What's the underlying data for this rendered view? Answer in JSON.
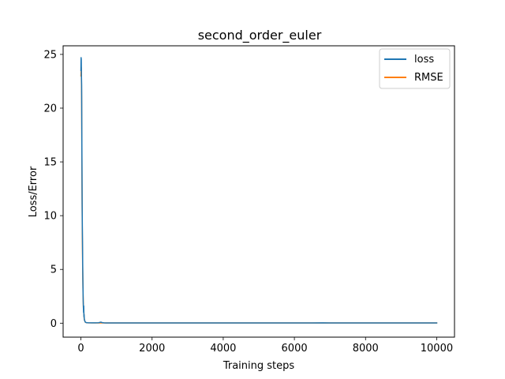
{
  "chart_data": {
    "type": "line",
    "title": "second_order_euler",
    "xlabel": "Training steps",
    "ylabel": "Loss/Error",
    "xlim": [
      -500,
      10500
    ],
    "ylim": [
      -1.3,
      25.8
    ],
    "xticks": [
      0,
      2000,
      4000,
      6000,
      8000,
      10000
    ],
    "xtick_labels": [
      "0",
      "2000",
      "4000",
      "6000",
      "8000",
      "10000"
    ],
    "yticks": [
      0,
      5,
      10,
      15,
      20,
      25
    ],
    "ytick_labels": [
      "0",
      "5",
      "10",
      "15",
      "20",
      "25"
    ],
    "grid": false,
    "legend_position": "top-right",
    "series": [
      {
        "name": "loss",
        "color": "#1f77b4",
        "x": [
          0,
          5,
          10,
          15,
          20,
          25,
          30,
          35,
          40,
          45,
          50,
          55,
          60,
          65,
          70,
          75,
          80,
          85,
          90,
          95,
          100,
          110,
          120,
          130,
          150,
          200,
          300,
          400,
          500,
          560,
          600,
          650,
          700,
          800,
          1000,
          2000,
          3000,
          4000,
          5000,
          6000,
          6500,
          6800,
          7000,
          8000,
          9000,
          10000
        ],
        "y": [
          23.5,
          24.7,
          24.5,
          23.0,
          22.2,
          18.0,
          14.5,
          11.0,
          9.0,
          7.5,
          5.5,
          4.0,
          3.0,
          2.0,
          1.5,
          1.0,
          1.6,
          0.6,
          0.8,
          0.4,
          0.3,
          0.2,
          0.12,
          0.08,
          0.05,
          0.04,
          0.03,
          0.03,
          0.04,
          0.1,
          0.05,
          0.03,
          0.02,
          0.02,
          0.02,
          0.02,
          0.02,
          0.02,
          0.02,
          0.02,
          0.02,
          0.03,
          0.02,
          0.02,
          0.02,
          0.02
        ]
      },
      {
        "name": "RMSE",
        "color": "#ff7f0e",
        "x": [
          0,
          10,
          20,
          30,
          40,
          50,
          60,
          70,
          80,
          90,
          100,
          120,
          150,
          200,
          500,
          1000,
          2000,
          4000,
          6000,
          8000,
          10000
        ],
        "y": [
          23.0,
          23.8,
          21.0,
          13.0,
          8.0,
          5.0,
          2.8,
          1.4,
          1.2,
          0.5,
          0.3,
          0.1,
          0.05,
          0.03,
          0.02,
          0.02,
          0.02,
          0.02,
          0.02,
          0.02,
          0.02
        ]
      }
    ]
  }
}
